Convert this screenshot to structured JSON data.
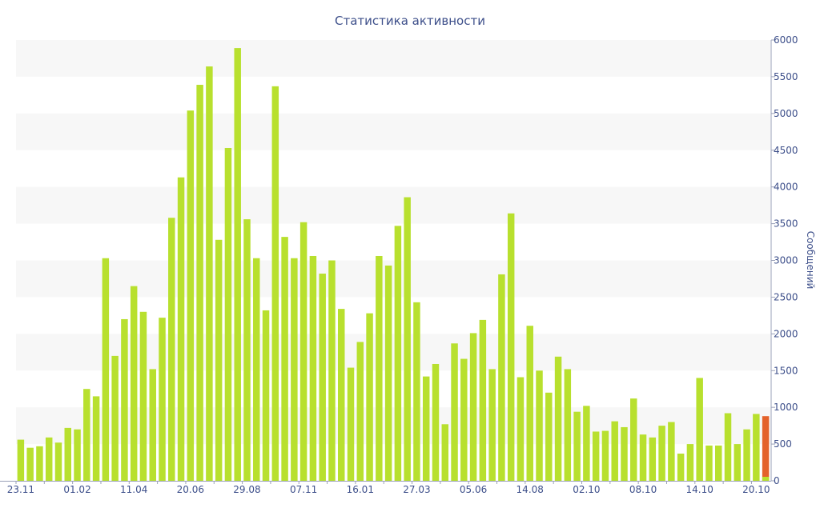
{
  "chart_data": {
    "type": "bar",
    "title": "Статистика активности",
    "ylabel": "Сообщений",
    "xlabel": "",
    "ylim": [
      0,
      6000
    ],
    "yticks": [
      0,
      500,
      1000,
      1500,
      2000,
      2500,
      3000,
      3500,
      4000,
      4500,
      5000,
      5500,
      6000
    ],
    "x_tick_labels": [
      {
        "label": "23.11",
        "index": 0
      },
      {
        "label": "01.02",
        "index": 6
      },
      {
        "label": "11.04",
        "index": 12
      },
      {
        "label": "20.06",
        "index": 18
      },
      {
        "label": "29.08",
        "index": 24
      },
      {
        "label": "07.11",
        "index": 30
      },
      {
        "label": "16.01",
        "index": 36
      },
      {
        "label": "27.03",
        "index": 42
      },
      {
        "label": "05.06",
        "index": 48
      },
      {
        "label": "14.08",
        "index": 54
      },
      {
        "label": "02.10",
        "index": 60
      },
      {
        "label": "08.10",
        "index": 66
      },
      {
        "label": "14.10",
        "index": 72
      },
      {
        "label": "20.10",
        "index": 78
      }
    ],
    "values": [
      560,
      450,
      470,
      590,
      520,
      720,
      700,
      1250,
      1150,
      3030,
      1700,
      2200,
      2650,
      2300,
      1520,
      2220,
      3580,
      4130,
      5040,
      5390,
      5640,
      3280,
      4530,
      5890,
      3560,
      3030,
      2320,
      5370,
      3320,
      3030,
      3520,
      3060,
      2820,
      3000,
      2340,
      1540,
      1890,
      2280,
      3060,
      2930,
      3470,
      3860,
      2430,
      1420,
      1590,
      770,
      1870,
      1660,
      2010,
      2190,
      1520,
      2810,
      3640,
      1410,
      2110,
      1500,
      1200,
      1690,
      1520,
      940,
      1020,
      670,
      680,
      810,
      730,
      1120,
      630,
      590,
      750,
      800,
      370,
      500,
      1400,
      480,
      480,
      920,
      500,
      700,
      910
    ],
    "highlight_value": 880,
    "colors": {
      "bar": "#b8e02e",
      "highlight": "#e4622b",
      "text": "#3d4f8a",
      "band": "#f7f7f7",
      "axis": "#9aa0b8"
    }
  }
}
